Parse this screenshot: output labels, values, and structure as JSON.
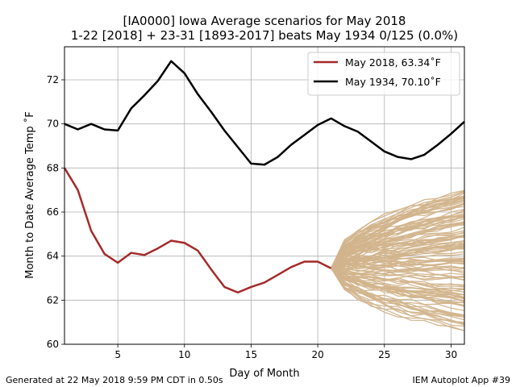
{
  "chart_data": {
    "type": "line",
    "title": "[IA0000] Iowa Average scenarios for May 2018",
    "subtitle": "1-22 [2018] + 23-31 [1893-2017] beats May 1934 0/125 (0.0%)",
    "xlabel": "Day of Month",
    "ylabel": "Month to Date Average Temp ˚F",
    "xlim": [
      1,
      31
    ],
    "ylim": [
      60,
      73.5
    ],
    "xticks": [
      5,
      10,
      15,
      20,
      25,
      30
    ],
    "yticks": [
      60,
      62,
      64,
      66,
      68,
      70,
      72
    ],
    "grid": true,
    "legend_position": "top-right",
    "series": [
      {
        "name": "May 2018, 63.34˚F",
        "color": "#a52a2a",
        "x": [
          1,
          2,
          3,
          4,
          5,
          6,
          7,
          8,
          9,
          10,
          11,
          12,
          13,
          14,
          15,
          16,
          17,
          18,
          19,
          20,
          21
        ],
        "values": [
          68.0,
          67.0,
          65.15,
          64.1,
          63.7,
          64.15,
          64.05,
          64.35,
          64.7,
          64.6,
          64.25,
          63.4,
          62.6,
          62.35,
          62.6,
          62.8,
          63.15,
          63.5,
          63.75,
          63.75,
          63.45
        ]
      },
      {
        "name": "May 1934, 70.10˚F",
        "color": "#000000",
        "x": [
          1,
          2,
          3,
          4,
          5,
          6,
          7,
          8,
          9,
          10,
          11,
          12,
          13,
          14,
          15,
          16,
          17,
          18,
          19,
          20,
          21,
          22,
          23,
          24,
          25,
          26,
          27,
          28,
          29,
          30,
          31
        ],
        "values": [
          70.0,
          69.75,
          70.0,
          69.75,
          69.7,
          70.7,
          71.3,
          71.95,
          72.85,
          72.3,
          71.35,
          70.55,
          69.7,
          68.95,
          68.2,
          68.15,
          68.5,
          69.05,
          69.5,
          69.95,
          70.25,
          69.9,
          69.65,
          69.2,
          68.75,
          68.5,
          68.4,
          68.6,
          69.05,
          69.55,
          70.1
        ]
      }
    ],
    "scenarios": {
      "name": "scenario traces 1893-2017",
      "color": "#d2b48c",
      "count": 125,
      "start_day": 21,
      "start_value": 63.45,
      "end_day": 31,
      "end_range": [
        60.6,
        67.1
      ]
    },
    "legend": [
      "May 2018, 63.34˚F",
      "May 1934, 70.10˚F"
    ]
  },
  "footer": {
    "left": "Generated at 22 May 2018 9:59 PM CDT in 0.50s",
    "right": "IEM Autoplot App #39"
  }
}
